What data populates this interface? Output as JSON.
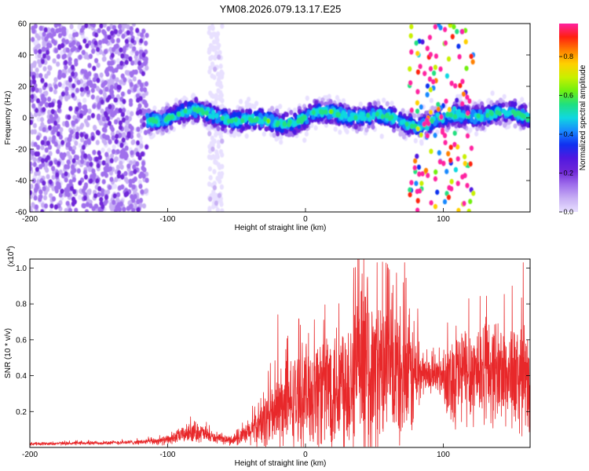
{
  "title": "YM08.2026.079.13.17.E25",
  "colors": {
    "snr_line": "#e8282a",
    "colormap": [
      "#e8e0ff",
      "#c8b0f4",
      "#a070ec",
      "#7028d8",
      "#5018e0",
      "#1030f0",
      "#1888ff",
      "#10d8e0",
      "#20e080",
      "#70f010",
      "#c8f000",
      "#ffd000",
      "#ff8000",
      "#ff2010",
      "#ff20a0"
    ]
  },
  "chart_data": [
    {
      "type": "heatmap",
      "name": "spectrogram",
      "xlabel": "Height of straight line (km)",
      "ylabel": "Frequency (Hz)",
      "xlim": [
        -200,
        163
      ],
      "ylim": [
        -60,
        60
      ],
      "xticks": [
        -200,
        -100,
        0,
        100
      ],
      "yticks": [
        60,
        40,
        20,
        0,
        -20,
        -40,
        -60
      ],
      "colorbar": {
        "label": "Normalized spectral amplitude",
        "range": [
          0,
          0.97
        ],
        "ticks": [
          0.0,
          0.2,
          0.4,
          0.6,
          0.8
        ]
      },
      "regions": [
        {
          "from_km": -200,
          "to_km": -115,
          "description": "broadband noise",
          "amplitude": 0.15
        },
        {
          "from_km": -70,
          "to_km": -60,
          "description": "vertical band",
          "amplitude": 0.05
        },
        {
          "from_km": -115,
          "to_km": 163,
          "description": "narrow band near 0 Hz",
          "center_hz": 0,
          "half_width_hz": 8,
          "amplitude": 0.45
        },
        {
          "from_km": 75,
          "to_km": 122,
          "description": "peak amplitude strip",
          "center_hz": 0,
          "amplitude": 0.93
        }
      ]
    },
    {
      "type": "line",
      "name": "snr",
      "xlabel": "Height of straight line (km)",
      "ylabel": "SNR (10 * v/v)",
      "yscale_label": "(x10",
      "yscale_exp": "4",
      "xlim": [
        -200,
        163
      ],
      "ylim": [
        0,
        1.05
      ],
      "xticks": [
        -200,
        -100,
        0,
        100
      ],
      "yticks": [
        0.2,
        0.4,
        0.6,
        0.8,
        1.0
      ],
      "series": [
        {
          "name": "SNR",
          "envelope_x": [
            -200,
            -150,
            -120,
            -100,
            -90,
            -80,
            -75,
            -65,
            -55,
            -45,
            -40,
            -35,
            -30,
            -20,
            -10,
            0,
            10,
            20,
            30,
            40,
            50,
            60,
            70,
            80,
            85,
            90,
            100,
            105,
            110,
            120,
            130,
            140,
            150,
            160,
            163
          ],
          "envelope_mean": [
            0.02,
            0.025,
            0.03,
            0.04,
            0.07,
            0.09,
            0.08,
            0.05,
            0.04,
            0.06,
            0.09,
            0.12,
            0.15,
            0.2,
            0.25,
            0.3,
            0.33,
            0.35,
            0.38,
            0.42,
            0.4,
            0.45,
            0.38,
            0.4,
            0.42,
            0.4,
            0.4,
            0.38,
            0.4,
            0.42,
            0.44,
            0.42,
            0.4,
            0.35,
            0.3
          ],
          "envelope_spread": [
            0.01,
            0.012,
            0.015,
            0.03,
            0.05,
            0.07,
            0.06,
            0.03,
            0.03,
            0.06,
            0.1,
            0.15,
            0.2,
            0.25,
            0.3,
            0.35,
            0.4,
            0.45,
            0.5,
            0.55,
            0.5,
            0.5,
            0.45,
            0.4,
            0.15,
            0.1,
            0.15,
            0.3,
            0.35,
            0.35,
            0.35,
            0.35,
            0.35,
            0.35,
            0.3
          ],
          "peaks": [
            [
              -20,
              0.74
            ],
            [
              35,
              1.0
            ],
            [
              45,
              0.95
            ],
            [
              52,
              1.03
            ],
            [
              60,
              1.0
            ],
            [
              72,
              1.03
            ],
            [
              150,
              0.9
            ],
            [
              158,
              1.03
            ]
          ]
        }
      ]
    }
  ]
}
